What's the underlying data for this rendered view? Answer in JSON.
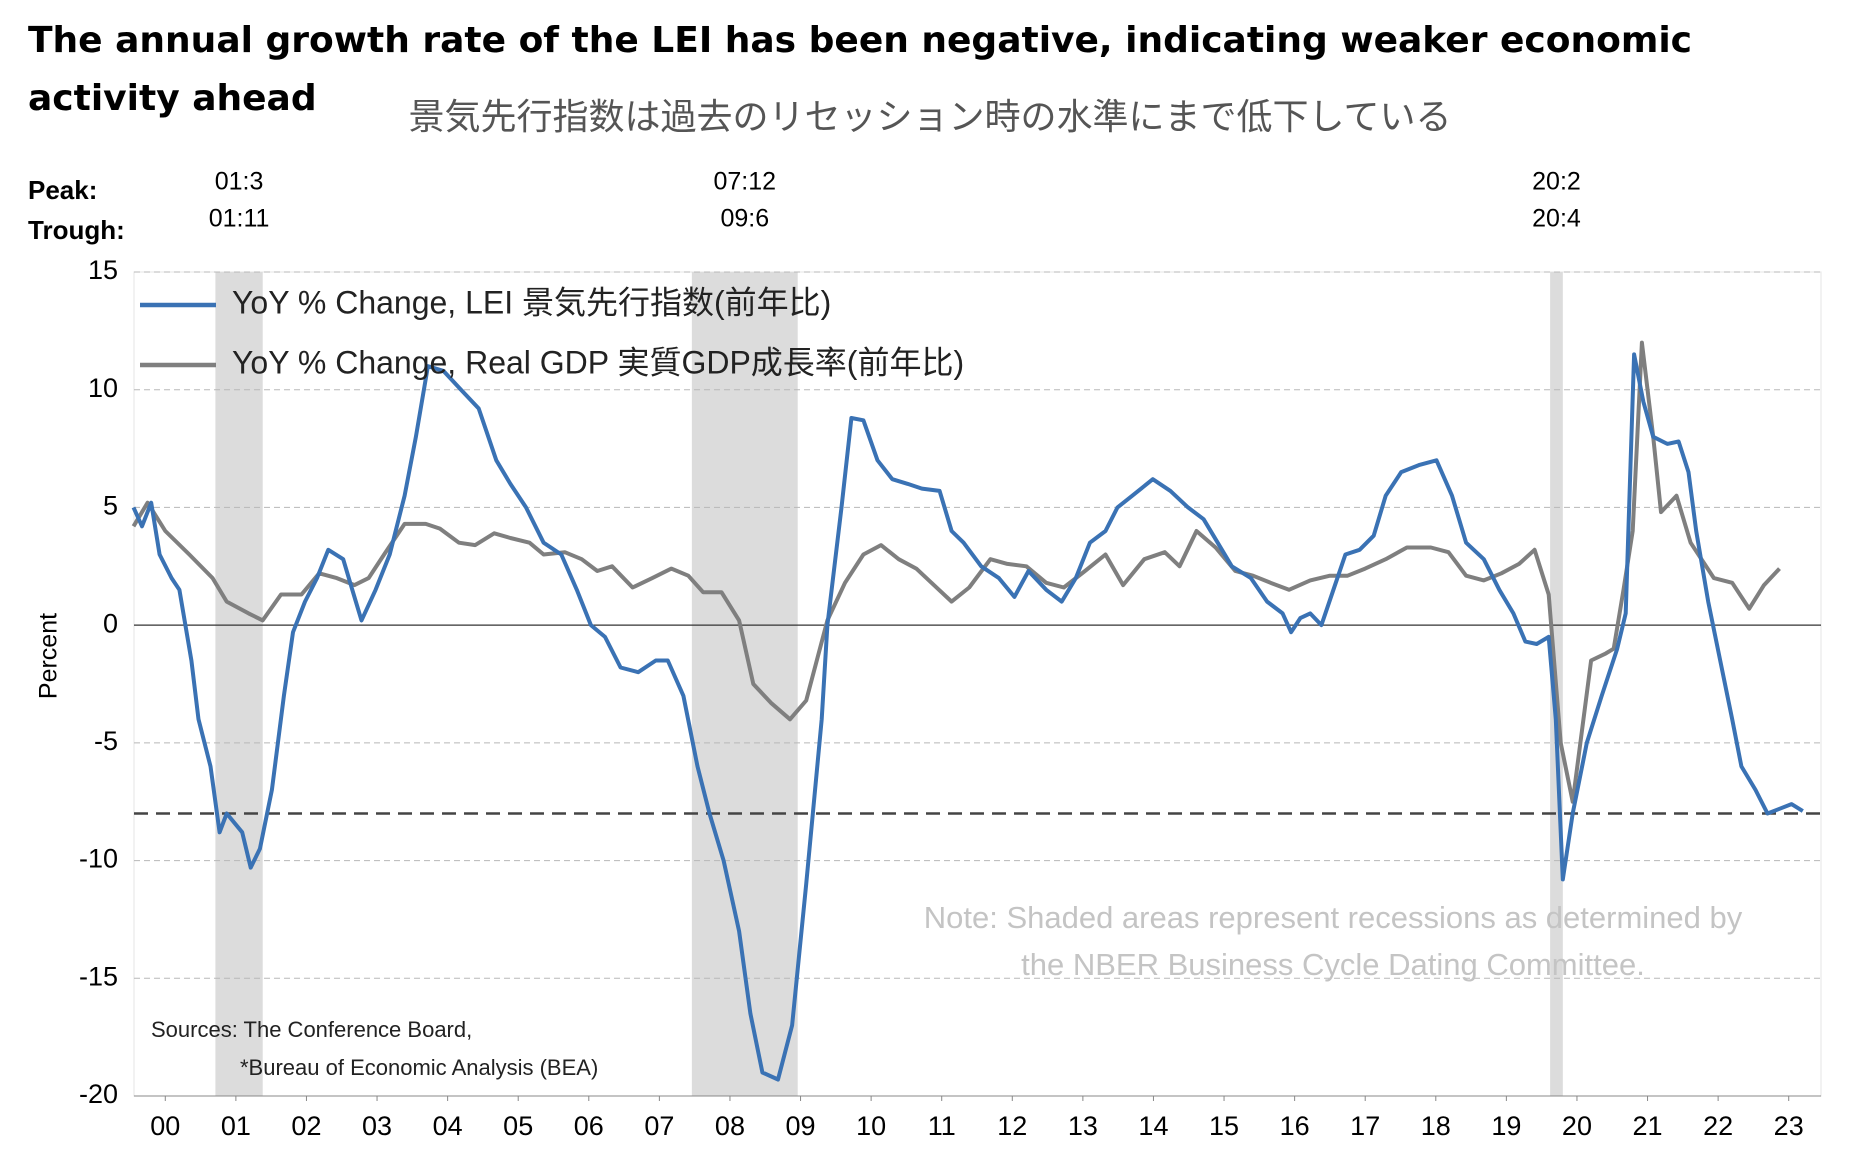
{
  "chart_data": {
    "type": "line",
    "title": "The annual growth rate of the LEI has been negative, indicating weaker economic activity ahead",
    "subtitle": "景気先行指数は過去のリセッション時の水準にまで低下している",
    "y_label": "Percent",
    "recession_labels": {
      "peak": "Peak:",
      "trough": "Trough:"
    },
    "recessions": [
      {
        "peak": "01:3",
        "trough": "01:11",
        "xspan": [
          2001.21,
          2001.88
        ]
      },
      {
        "peak": "07:12",
        "trough": "09:6",
        "xspan": [
          2007.96,
          2009.46
        ]
      },
      {
        "peak": "20:2",
        "trough": "20:4",
        "xspan": [
          2020.12,
          2020.3
        ]
      }
    ],
    "sources": [
      "Sources: The Conference Board,",
      "*Bureau of Economic Analysis (BEA)"
    ],
    "note": [
      "Note: Shaded areas represent recessions as determined by",
      "the NBER Business Cycle Dating Committee."
    ],
    "reference_line": -8,
    "xlim": [
      2000,
      2024
    ],
    "ylim": [
      -20,
      15
    ],
    "yticks": [
      -20,
      -15,
      -10,
      -5,
      0,
      5,
      10,
      15
    ],
    "xticks": [
      {
        "value": 2000.5,
        "label": "00"
      },
      {
        "value": 2001.5,
        "label": "01"
      },
      {
        "value": 2002.5,
        "label": "02"
      },
      {
        "value": 2003.5,
        "label": "03"
      },
      {
        "value": 2004.5,
        "label": "04"
      },
      {
        "value": 2005.5,
        "label": "05"
      },
      {
        "value": 2006.5,
        "label": "06"
      },
      {
        "value": 2007.5,
        "label": "07"
      },
      {
        "value": 2008.5,
        "label": "08"
      },
      {
        "value": 2009.5,
        "label": "09"
      },
      {
        "value": 2010.5,
        "label": "10"
      },
      {
        "value": 2011.5,
        "label": "11"
      },
      {
        "value": 2012.5,
        "label": "12"
      },
      {
        "value": 2013.5,
        "label": "13"
      },
      {
        "value": 2014.5,
        "label": "14"
      },
      {
        "value": 2015.5,
        "label": "15"
      },
      {
        "value": 2016.5,
        "label": "16"
      },
      {
        "value": 2017.5,
        "label": "17"
      },
      {
        "value": 2018.5,
        "label": "18"
      },
      {
        "value": 2019.5,
        "label": "19"
      },
      {
        "value": 2020.5,
        "label": "20"
      },
      {
        "value": 2021.5,
        "label": "21"
      },
      {
        "value": 2022.5,
        "label": "22"
      },
      {
        "value": 2023.5,
        "label": "23"
      }
    ],
    "grid": true,
    "legend": "top-left",
    "series": [
      {
        "name": "YoY % Change, LEI 景気先行指数(前年比)",
        "color": "#3a72b4",
        "x": [
          2000.05,
          2000.17,
          2000.3,
          2000.42,
          2000.59,
          2000.7,
          2000.87,
          2000.97,
          2001.14,
          2001.27,
          2001.37,
          2001.59,
          2001.71,
          2001.84,
          2002.01,
          2002.18,
          2002.31,
          2002.48,
          2002.65,
          2002.81,
          2003.02,
          2003.15,
          2003.28,
          2003.48,
          2003.68,
          2003.89,
          2004.05,
          2004.22,
          2004.44,
          2004.69,
          2004.94,
          2005.19,
          2005.39,
          2005.61,
          2005.86,
          2006.11,
          2006.33,
          2006.53,
          2006.73,
          2006.95,
          2007.2,
          2007.45,
          2007.62,
          2007.84,
          2008.04,
          2008.21,
          2008.41,
          2008.63,
          2008.79,
          2008.96,
          2009.18,
          2009.38,
          2009.58,
          2009.8,
          2009.88,
          2010.08,
          2010.22,
          2010.39,
          2010.59,
          2010.8,
          2011.02,
          2011.22,
          2011.47,
          2011.64,
          2011.81,
          2012.06,
          2012.31,
          2012.53,
          2012.73,
          2012.98,
          2013.2,
          2013.4,
          2013.6,
          2013.82,
          2013.99,
          2014.2,
          2014.49,
          2014.74,
          2014.99,
          2015.21,
          2015.41,
          2015.61,
          2015.88,
          2016.11,
          2016.33,
          2016.45,
          2016.58,
          2016.72,
          2016.88,
          2017.05,
          2017.22,
          2017.42,
          2017.62,
          2017.79,
          2018.01,
          2018.26,
          2018.51,
          2018.73,
          2018.93,
          2019.18,
          2019.4,
          2019.6,
          2019.77,
          2019.93,
          2020.1,
          2020.2,
          2020.3,
          2020.44,
          2020.64,
          2020.85,
          2021.07,
          2021.19,
          2021.31,
          2021.44,
          2021.58,
          2021.78,
          2021.94,
          2022.08,
          2022.19,
          2022.36,
          2022.53,
          2022.7,
          2022.83,
          2023.03,
          2023.2,
          2023.37,
          2023.54,
          2023.7
        ],
        "values": [
          5,
          4.2,
          5.2,
          3,
          2,
          1.5,
          -1.5,
          -4,
          -6,
          -8.8,
          -8,
          -8.8,
          -10.3,
          -9.5,
          -7,
          -3,
          -0.3,
          1,
          2,
          3.2,
          2.8,
          1.5,
          0.2,
          1.5,
          3,
          5.5,
          8,
          11,
          10.8,
          10,
          9.2,
          7,
          6,
          5,
          3.5,
          3,
          1.5,
          0,
          -0.5,
          -1.8,
          -2,
          -1.5,
          -1.5,
          -3,
          -6,
          -8,
          -10,
          -13,
          -16.5,
          -19,
          -19.3,
          -17,
          -11,
          -4,
          0,
          5,
          8.8,
          8.7,
          7,
          6.2,
          6,
          5.8,
          5.7,
          4,
          3.5,
          2.5,
          2,
          1.2,
          2.3,
          1.5,
          1,
          2,
          3.5,
          4,
          5,
          5.5,
          6.2,
          5.7,
          5,
          4.5,
          3.5,
          2.5,
          2,
          1,
          0.5,
          -0.3,
          0.3,
          0.5,
          0,
          1.5,
          3,
          3.2,
          3.8,
          5.5,
          6.5,
          6.8,
          7,
          5.5,
          3.5,
          2.8,
          1.5,
          0.5,
          -0.7,
          -0.8,
          -0.5,
          -4,
          -10.8,
          -8,
          -5,
          -3,
          -1,
          0.5,
          11.5,
          9.5,
          8,
          7.7,
          7.8,
          6.5,
          4,
          1,
          -1.5,
          -4,
          -6,
          -7,
          -8,
          -7.8,
          -7.6,
          -7.9
        ]
      },
      {
        "name": "YoY % Change, Real GDP 実質GDP成長率(前年比)",
        "color": "#7f7f7f",
        "x": [
          2000.05,
          2000.25,
          2000.5,
          2000.84,
          2001.17,
          2001.37,
          2001.68,
          2001.88,
          2002.14,
          2002.43,
          2002.68,
          2002.93,
          2003.18,
          2003.38,
          2003.6,
          2003.89,
          2004.19,
          2004.39,
          2004.66,
          2004.89,
          2005.16,
          2005.39,
          2005.66,
          2005.86,
          2006.16,
          2006.4,
          2006.62,
          2006.83,
          2007.12,
          2007.4,
          2007.67,
          2007.91,
          2008.12,
          2008.38,
          2008.63,
          2008.83,
          2009.08,
          2009.35,
          2009.58,
          2009.88,
          2010.13,
          2010.39,
          2010.64,
          2010.89,
          2011.14,
          2011.39,
          2011.64,
          2011.89,
          2012.19,
          2012.43,
          2012.7,
          2012.98,
          2013.23,
          2013.53,
          2013.82,
          2014.07,
          2014.37,
          2014.66,
          2014.87,
          2015.11,
          2015.38,
          2015.66,
          2015.91,
          2016.16,
          2016.42,
          2016.72,
          2017,
          2017.25,
          2017.5,
          2017.79,
          2018.09,
          2018.43,
          2018.68,
          2018.93,
          2019.18,
          2019.43,
          2019.68,
          2019.9,
          2020.1,
          2020.27,
          2020.44,
          2020.57,
          2020.7,
          2020.91,
          2021.02,
          2021.16,
          2021.29,
          2021.42,
          2021.58,
          2021.69,
          2021.91,
          2022.11,
          2022.44,
          2022.7,
          2022.94,
          2023.15,
          2023.37
        ],
        "values": [
          4.2,
          5.2,
          4,
          3,
          2,
          1,
          0.5,
          0.2,
          1.3,
          1.3,
          2.2,
          2,
          1.7,
          2,
          3,
          4.3,
          4.3,
          4.1,
          3.5,
          3.4,
          3.9,
          3.7,
          3.5,
          3,
          3.1,
          2.8,
          2.3,
          2.5,
          1.6,
          2,
          2.4,
          2.1,
          1.4,
          1.4,
          0.2,
          -2.5,
          -3.3,
          -4,
          -3.2,
          0.2,
          1.8,
          3,
          3.4,
          2.8,
          2.4,
          1.7,
          1,
          1.6,
          2.8,
          2.6,
          2.5,
          1.8,
          1.6,
          2.3,
          3,
          1.7,
          2.8,
          3.1,
          2.5,
          4,
          3.3,
          2.3,
          2.1,
          1.8,
          1.5,
          1.9,
          2.1,
          2.1,
          2.4,
          2.8,
          3.3,
          3.3,
          3.1,
          2.1,
          1.9,
          2.2,
          2.6,
          3.2,
          1.3,
          -5,
          -7.5,
          -4.5,
          -1.5,
          -1.2,
          -1,
          1.5,
          4,
          12,
          8,
          4.8,
          5.5,
          3.5,
          2,
          1.8,
          0.7,
          1.7,
          2.4
        ]
      }
    ]
  }
}
